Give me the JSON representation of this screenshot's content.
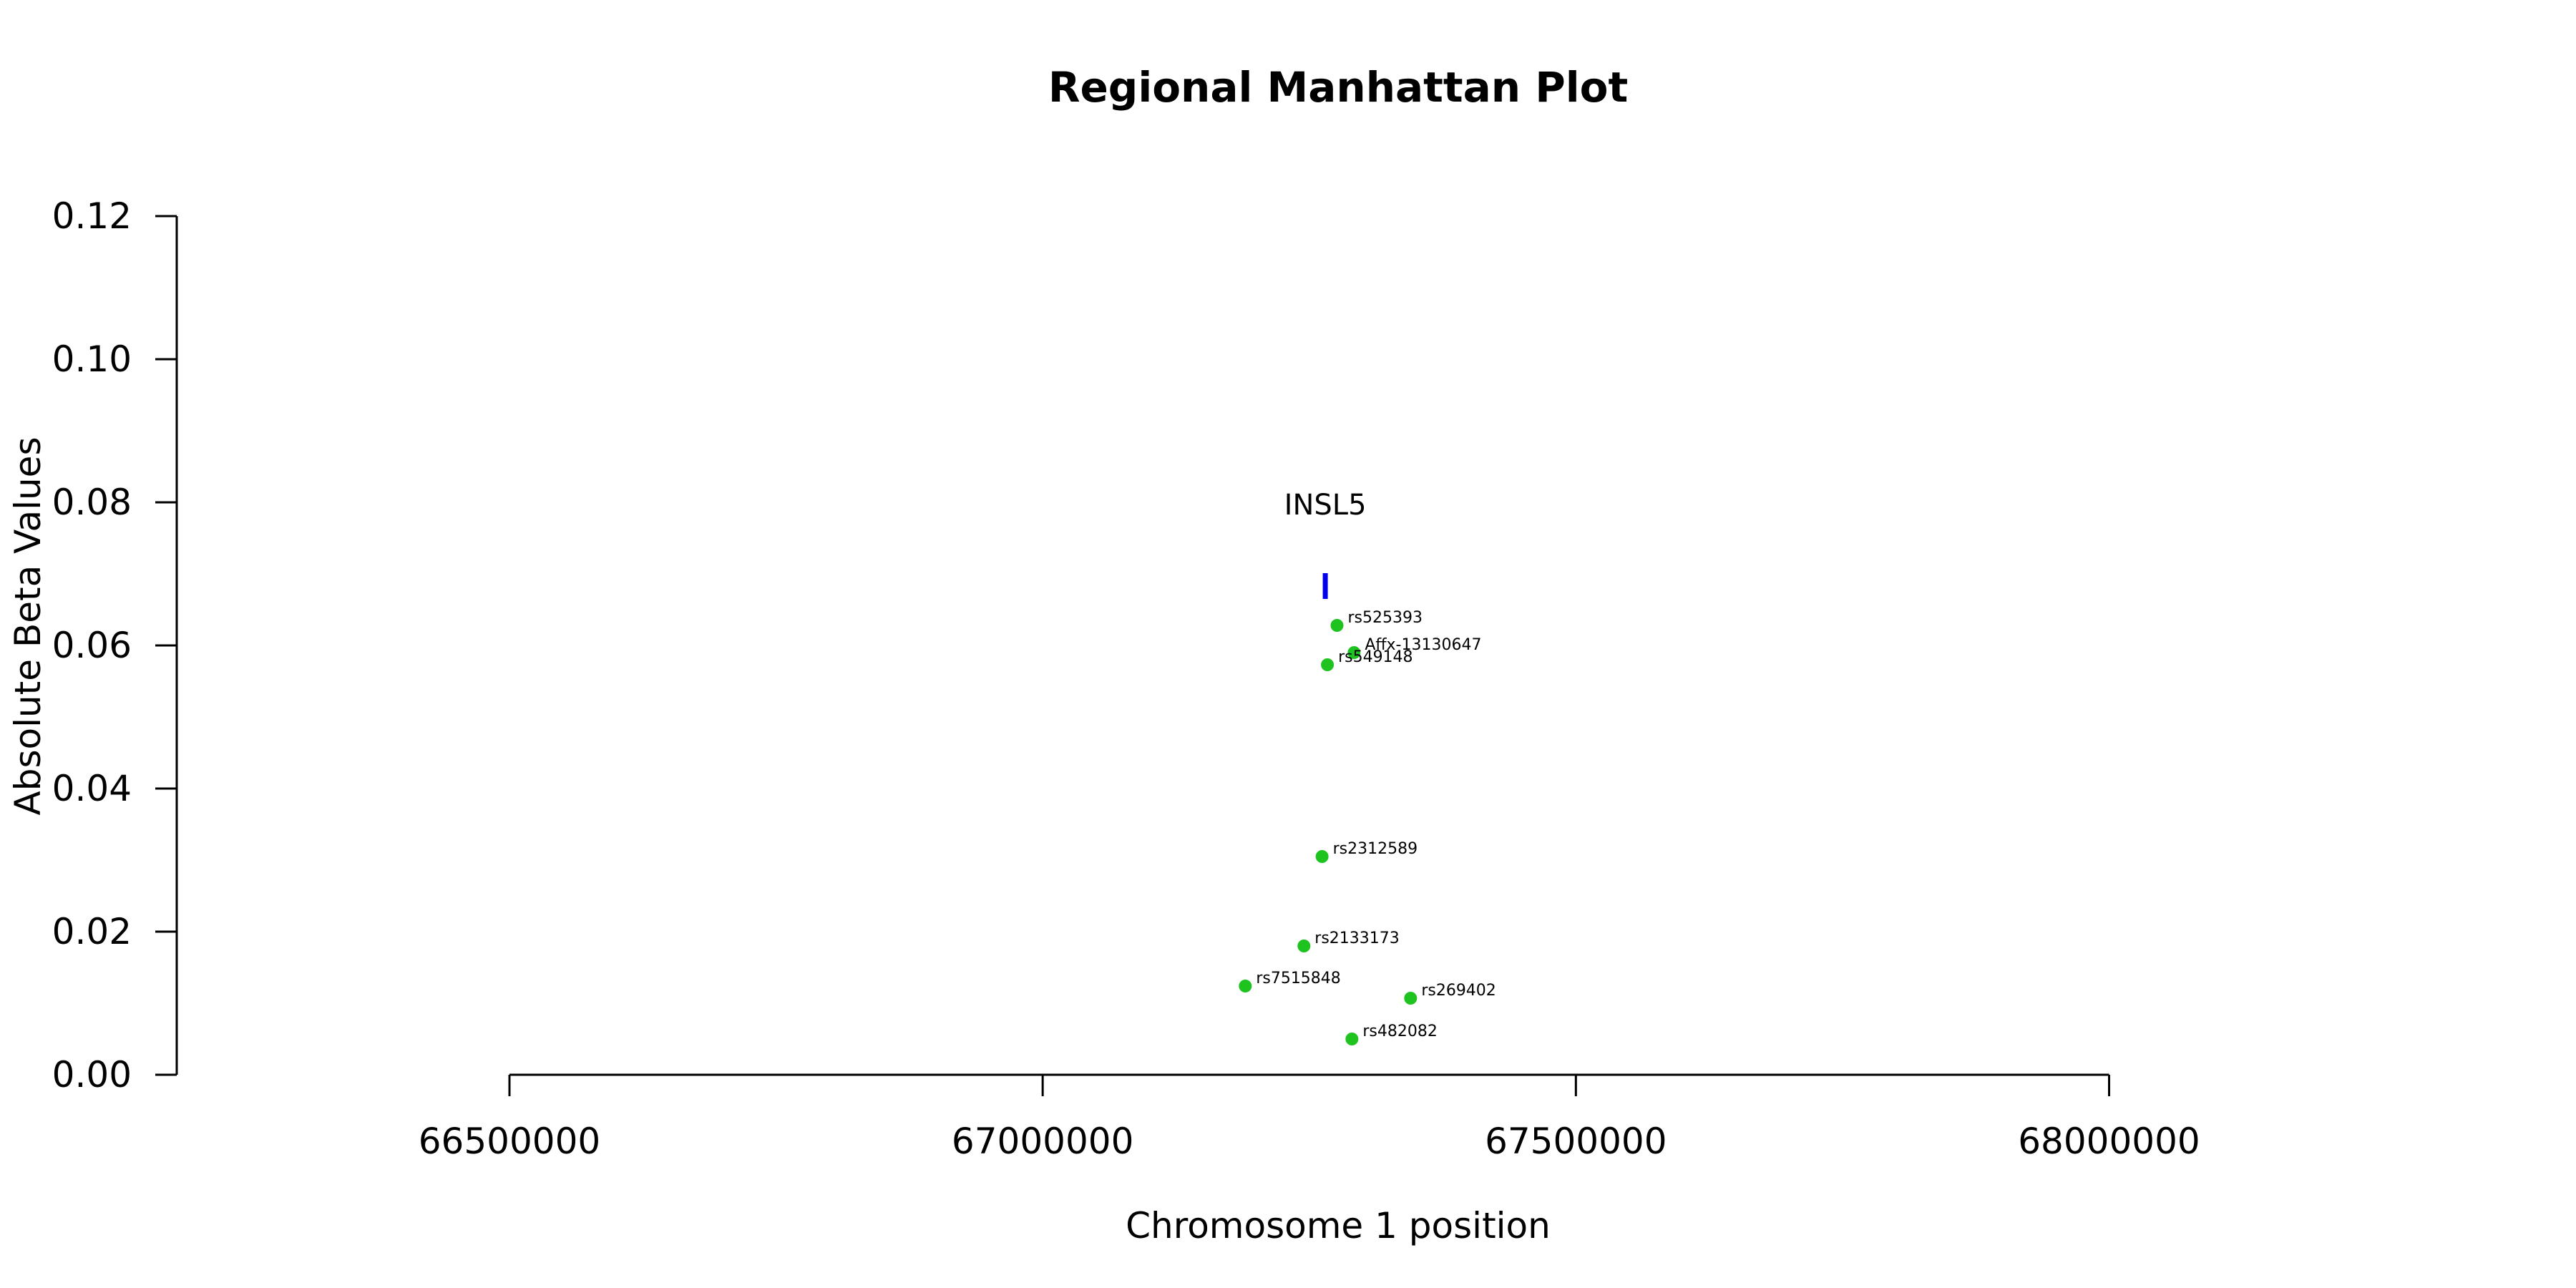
{
  "chart_data": {
    "type": "scatter",
    "title": "Regional Manhattan Plot",
    "xlabel": "Chromosome 1 position",
    "ylabel": "Absolute Beta Values",
    "xlim": [
      66188000,
      68362000
    ],
    "ylim": [
      0,
      0.12
    ],
    "x_ticks": [
      66500000,
      67000000,
      67500000,
      68000000
    ],
    "x_tick_labels": [
      "66500000",
      "67000000",
      "67500000",
      "68000000"
    ],
    "y_ticks": [
      0,
      0.02,
      0.04,
      0.06,
      0.08,
      0.1,
      0.12
    ],
    "y_tick_labels": [
      "0.00",
      "0.02",
      "0.04",
      "0.06",
      "0.08",
      "0.10",
      "0.12"
    ],
    "grid": false,
    "point_color": "#1fc31f",
    "gene_color": "#0000ee",
    "points": [
      {
        "label": "rs525393",
        "x": 67276000,
        "y": 0.0628
      },
      {
        "label": "Affx-13130647",
        "x": 67292000,
        "y": 0.059
      },
      {
        "label": "rs549148",
        "x": 67267000,
        "y": 0.0573
      },
      {
        "label": "rs2312589",
        "x": 67262000,
        "y": 0.0305
      },
      {
        "label": "rs2133173",
        "x": 67245000,
        "y": 0.018
      },
      {
        "label": "rs7515848",
        "x": 67190000,
        "y": 0.0124
      },
      {
        "label": "rs269402",
        "x": 67345000,
        "y": 0.0107
      },
      {
        "label": "rs482082",
        "x": 67290000,
        "y": 0.005
      }
    ],
    "genes": [
      {
        "name": "INSL5",
        "start": 67263000,
        "end": 67267000,
        "y": 0.0683
      }
    ]
  }
}
